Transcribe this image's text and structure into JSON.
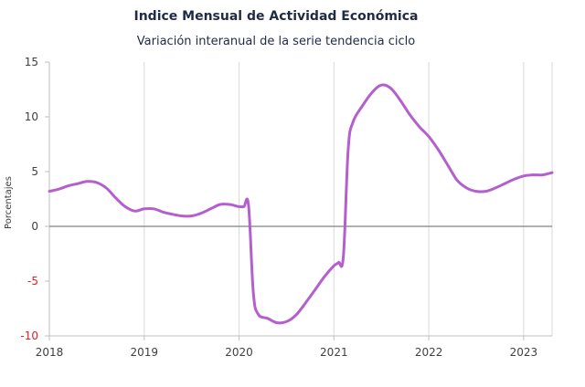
{
  "chart_data": {
    "type": "line",
    "title": "Indice Mensual de  Actividad Económica",
    "subtitle": "Variación interanual de la serie tendencia ciclo",
    "ylabel": "Porcentajes",
    "xlabel": "",
    "xlim": [
      2018.0,
      2023.3
    ],
    "ylim": [
      -10,
      15
    ],
    "yticks": [
      15,
      10,
      5,
      0,
      -5,
      -10
    ],
    "ytick_labels": [
      "15",
      "10",
      "5",
      "0",
      "-5",
      "-10"
    ],
    "xticks": [
      2018,
      2019,
      2020,
      2021,
      2022,
      2023
    ],
    "xtick_labels": [
      "2018",
      "2019",
      "2020",
      "2021",
      "2022",
      "2023"
    ],
    "grid": "vertical",
    "legend": "none",
    "colors": {
      "line": "#b45fce",
      "grid": "#d9d9d9",
      "zero_line": "#808080",
      "axis": "#bfbfbf",
      "title": "#1f2a44",
      "tick_text": "#404040",
      "negative_tick_text": "#e02020"
    },
    "series": [
      {
        "x": [
          2018.0,
          2018.1,
          2018.2,
          2018.3,
          2018.4,
          2018.5,
          2018.6,
          2018.7,
          2018.8,
          2018.9,
          2019.0,
          2019.1,
          2019.2,
          2019.3,
          2019.4,
          2019.5,
          2019.6,
          2019.7,
          2019.8,
          2019.9,
          2020.0,
          2020.05,
          2020.1,
          2020.15,
          2020.2,
          2020.3,
          2020.4,
          2020.5,
          2020.6,
          2020.7,
          2020.8,
          2020.9,
          2021.0,
          2021.05,
          2021.1,
          2021.15,
          2021.2,
          2021.3,
          2021.4,
          2021.5,
          2021.6,
          2021.7,
          2021.8,
          2021.9,
          2022.0,
          2022.1,
          2022.2,
          2022.3,
          2022.4,
          2022.5,
          2022.6,
          2022.7,
          2022.8,
          2022.9,
          2023.0,
          2023.1,
          2023.2,
          2023.3
        ],
        "values": [
          3.2,
          3.4,
          3.7,
          3.9,
          4.1,
          4.0,
          3.5,
          2.6,
          1.8,
          1.4,
          1.6,
          1.6,
          1.3,
          1.1,
          0.95,
          0.95,
          1.2,
          1.6,
          2.0,
          2.0,
          1.8,
          1.8,
          1.9,
          -6.0,
          -8.0,
          -8.4,
          -8.8,
          -8.7,
          -8.1,
          -7.0,
          -5.8,
          -4.6,
          -3.6,
          -3.3,
          -2.7,
          7.0,
          9.5,
          11.0,
          12.2,
          12.9,
          12.6,
          11.5,
          10.2,
          9.1,
          8.2,
          7.0,
          5.6,
          4.2,
          3.5,
          3.2,
          3.2,
          3.5,
          3.9,
          4.3,
          4.6,
          4.7,
          4.7,
          4.9
        ]
      }
    ]
  }
}
